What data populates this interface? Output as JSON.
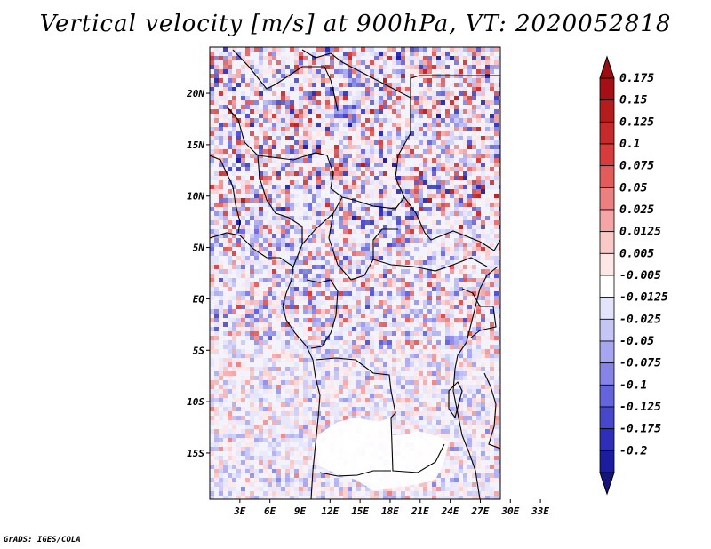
{
  "title": "Vertical velocity [m/s] at 900hPa, VT: 2020052818",
  "footer": "GrADS: IGES/COLA",
  "map": {
    "lat_range": [
      -19.5,
      24.5
    ],
    "lon_range": [
      0,
      29
    ],
    "lat_ticks": [
      {
        "label": "20N",
        "value": 20
      },
      {
        "label": "15N",
        "value": 15
      },
      {
        "label": "10N",
        "value": 10
      },
      {
        "label": "5N",
        "value": 5
      },
      {
        "label": "EQ",
        "value": 0
      },
      {
        "label": "5S",
        "value": -5
      },
      {
        "label": "10S",
        "value": -10
      },
      {
        "label": "15S",
        "value": -15
      }
    ],
    "lon_ticks": [
      {
        "label": "3E",
        "value": 3
      },
      {
        "label": "6E",
        "value": 6
      },
      {
        "label": "9E",
        "value": 9
      },
      {
        "label": "12E",
        "value": 12
      },
      {
        "label": "15E",
        "value": 15
      },
      {
        "label": "18E",
        "value": 18
      },
      {
        "label": "21E",
        "value": 21
      },
      {
        "label": "24E",
        "value": 24
      },
      {
        "label": "27E",
        "value": 27
      },
      {
        "label": "30E",
        "value": 30
      },
      {
        "label": "33E",
        "value": 33
      }
    ]
  },
  "colorbar": {
    "levels": [
      {
        "label": "0.175",
        "color": "#a50f15"
      },
      {
        "label": "0.15",
        "color": "#b51c1c"
      },
      {
        "label": "0.125",
        "color": "#c62a2a"
      },
      {
        "label": "0.1",
        "color": "#d63c3c"
      },
      {
        "label": "0.075",
        "color": "#e35b5b"
      },
      {
        "label": "0.05",
        "color": "#ec8080"
      },
      {
        "label": "0.025",
        "color": "#f5a5a5"
      },
      {
        "label": "0.0125",
        "color": "#fbc8c8"
      },
      {
        "label": "0.005",
        "color": "#fde6e6"
      },
      {
        "label": "-0.005",
        "color": "#ffffff"
      },
      {
        "label": "-0.0125",
        "color": "#e3e3fb"
      },
      {
        "label": "-0.025",
        "color": "#c6c6f6"
      },
      {
        "label": "-0.05",
        "color": "#a6a6f0"
      },
      {
        "label": "-0.075",
        "color": "#8585e8"
      },
      {
        "label": "-0.1",
        "color": "#6464dc"
      },
      {
        "label": "-0.125",
        "color": "#4747cc"
      },
      {
        "label": "-0.175",
        "color": "#2e2eb8"
      },
      {
        "label": "-0.2",
        "color": "#1c1ca0"
      }
    ],
    "top_color": "#9b0d12",
    "bottom_color": "#14147a"
  }
}
